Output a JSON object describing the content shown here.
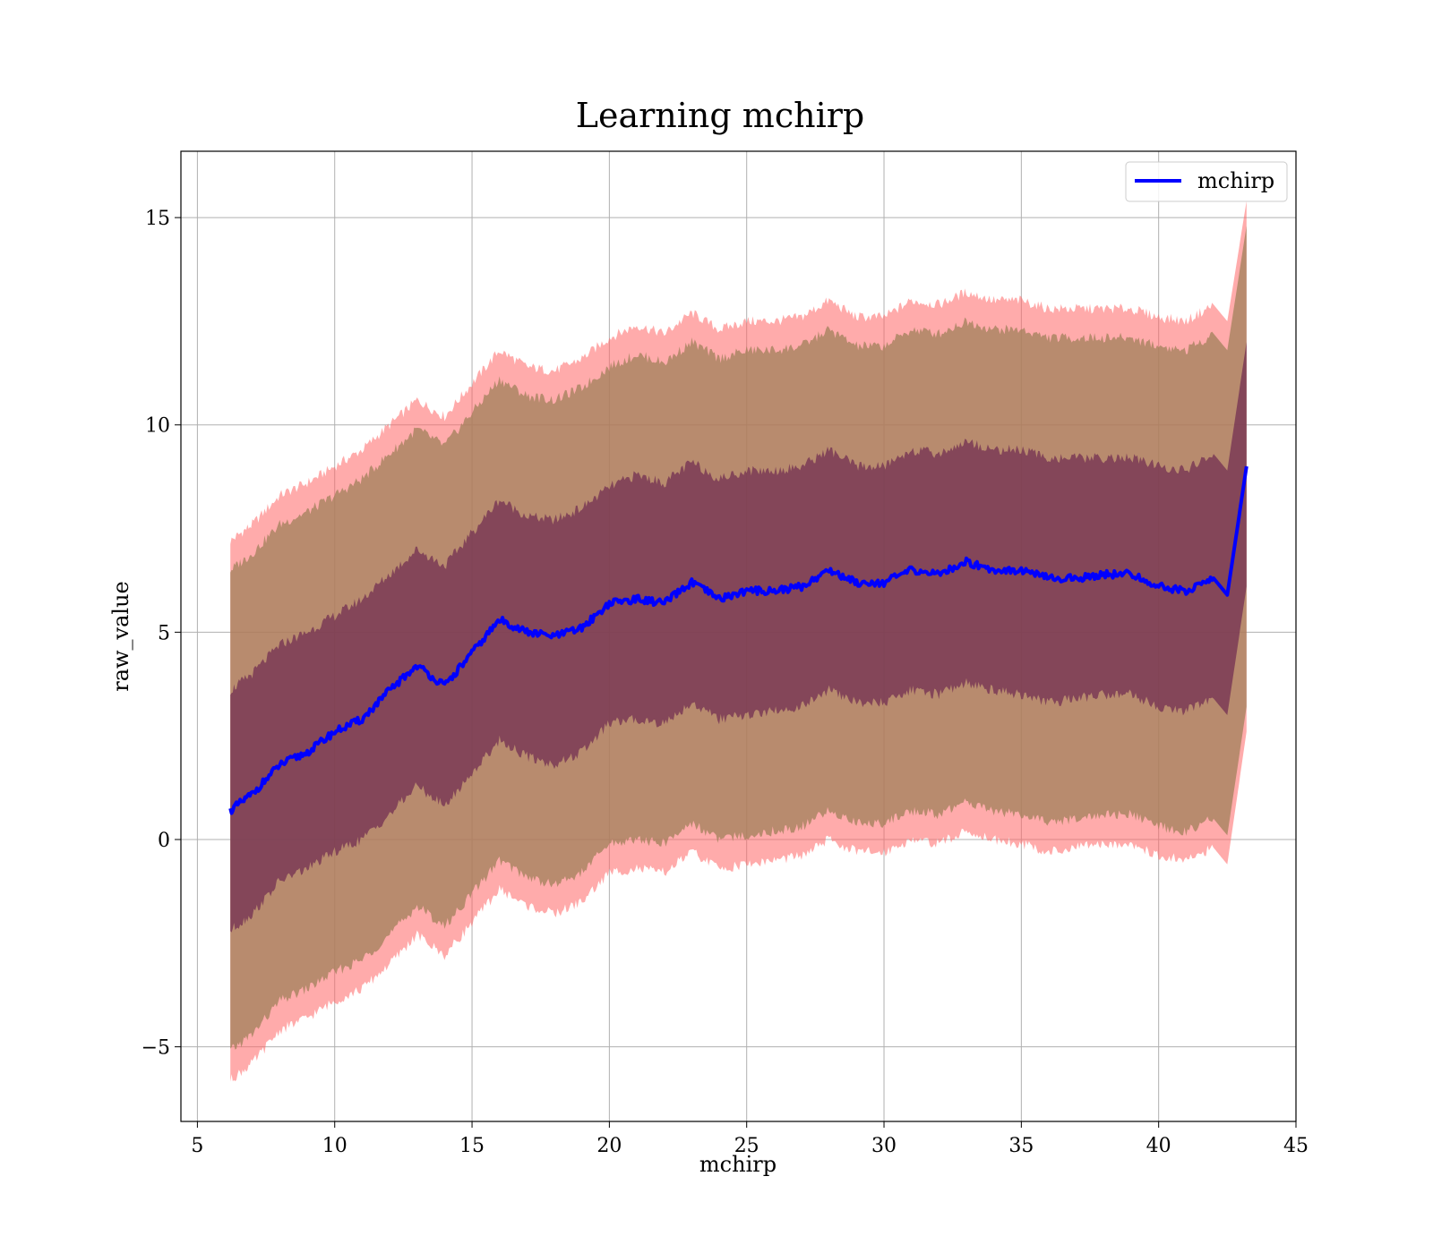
{
  "chart_data": {
    "type": "line",
    "title": "Learning mchirp",
    "xlabel": "mchirp",
    "ylabel": "raw_value",
    "xlim": [
      4.4,
      45
    ],
    "ylim": [
      -6.8,
      16.6
    ],
    "xticks": [
      5,
      10,
      15,
      20,
      25,
      30,
      35,
      40,
      45
    ],
    "xtick_labels": [
      "5",
      "10",
      "15",
      "20",
      "25",
      "30",
      "35",
      "40",
      "45"
    ],
    "yticks": [
      -5,
      0,
      5,
      10,
      15
    ],
    "ytick_labels": [
      "−5",
      "0",
      "5",
      "10",
      "15"
    ],
    "grid": true,
    "legend_position": "top-right",
    "colors": {
      "line": "#0000ff",
      "outer_band": "#ff6666",
      "middle_band": "#a0805a",
      "inner_band": "#6e2a50"
    },
    "series": [
      {
        "name": "mchirp",
        "x": [
          6.2,
          7,
          8,
          9,
          10,
          11,
          12,
          13,
          14,
          15,
          16,
          17,
          18,
          19,
          20,
          21,
          22,
          23,
          24,
          25,
          26,
          27,
          28,
          29,
          30,
          31,
          32,
          33,
          34,
          35,
          36,
          37,
          38,
          39,
          40,
          41,
          42,
          42.5,
          43.2
        ],
        "y": [
          0.7,
          1.1,
          1.8,
          2.1,
          2.6,
          2.9,
          3.6,
          4.2,
          3.7,
          4.5,
          5.3,
          5.0,
          4.9,
          5.1,
          5.7,
          5.8,
          5.7,
          6.2,
          5.8,
          6.0,
          6.0,
          6.1,
          6.5,
          6.2,
          6.2,
          6.5,
          6.4,
          6.7,
          6.5,
          6.5,
          6.3,
          6.3,
          6.4,
          6.4,
          6.1,
          6.0,
          6.3,
          5.9,
          9.0
        ]
      }
    ],
    "bands": {
      "outer_upper": [
        7.2,
        7.6,
        8.3,
        8.6,
        9.0,
        9.4,
        10.0,
        10.6,
        10.2,
        11.0,
        11.8,
        11.4,
        11.3,
        11.6,
        12.1,
        12.4,
        12.2,
        12.7,
        12.3,
        12.5,
        12.5,
        12.6,
        13.0,
        12.6,
        12.6,
        13.0,
        12.9,
        13.2,
        13.0,
        13.0,
        12.8,
        12.8,
        12.8,
        12.8,
        12.6,
        12.5,
        12.9,
        12.5,
        15.4
      ],
      "outer_lower": [
        -5.8,
        -5.4,
        -4.6,
        -4.3,
        -3.9,
        -3.6,
        -3.0,
        -2.3,
        -2.8,
        -2.0,
        -1.2,
        -1.6,
        -1.8,
        -1.5,
        -0.8,
        -0.7,
        -0.8,
        -0.3,
        -0.7,
        -0.6,
        -0.5,
        -0.4,
        0.0,
        -0.3,
        -0.3,
        0.0,
        -0.1,
        0.2,
        0.0,
        -0.1,
        -0.3,
        -0.2,
        -0.1,
        -0.1,
        -0.4,
        -0.5,
        -0.2,
        -0.6,
        2.6
      ],
      "middle_upper": [
        6.5,
        6.9,
        7.6,
        7.9,
        8.3,
        8.7,
        9.3,
        9.9,
        9.5,
        10.3,
        11.1,
        10.7,
        10.6,
        10.9,
        11.4,
        11.7,
        11.5,
        12.0,
        11.6,
        11.8,
        11.8,
        11.9,
        12.3,
        11.9,
        11.9,
        12.3,
        12.2,
        12.5,
        12.3,
        12.3,
        12.1,
        12.1,
        12.1,
        12.1,
        11.9,
        11.8,
        12.2,
        11.8,
        14.8
      ],
      "middle_lower": [
        -5.1,
        -4.7,
        -3.9,
        -3.6,
        -3.2,
        -2.9,
        -2.3,
        -1.6,
        -2.1,
        -1.3,
        -0.5,
        -0.9,
        -1.1,
        -0.8,
        -0.1,
        0.0,
        -0.1,
        0.4,
        0.0,
        0.1,
        0.2,
        0.3,
        0.7,
        0.4,
        0.4,
        0.7,
        0.6,
        0.9,
        0.7,
        0.6,
        0.4,
        0.5,
        0.6,
        0.6,
        0.3,
        0.2,
        0.5,
        0.1,
        3.2
      ],
      "inner_upper": [
        3.6,
        4.0,
        4.7,
        5.0,
        5.4,
        5.8,
        6.4,
        7.0,
        6.6,
        7.4,
        8.2,
        7.8,
        7.7,
        8.0,
        8.5,
        8.8,
        8.6,
        9.1,
        8.7,
        8.9,
        8.9,
        9.0,
        9.4,
        9.0,
        9.0,
        9.4,
        9.3,
        9.6,
        9.4,
        9.4,
        9.2,
        9.2,
        9.2,
        9.2,
        9.0,
        8.9,
        9.3,
        8.9,
        12.0
      ],
      "inner_lower": [
        -2.2,
        -1.8,
        -1.0,
        -0.7,
        -0.3,
        0.0,
        0.6,
        1.3,
        0.8,
        1.6,
        2.4,
        2.0,
        1.8,
        2.1,
        2.8,
        2.9,
        2.8,
        3.3,
        2.9,
        3.0,
        3.1,
        3.2,
        3.6,
        3.3,
        3.3,
        3.6,
        3.5,
        3.8,
        3.6,
        3.5,
        3.3,
        3.4,
        3.5,
        3.5,
        3.2,
        3.1,
        3.4,
        3.0,
        6.1
      ]
    }
  }
}
